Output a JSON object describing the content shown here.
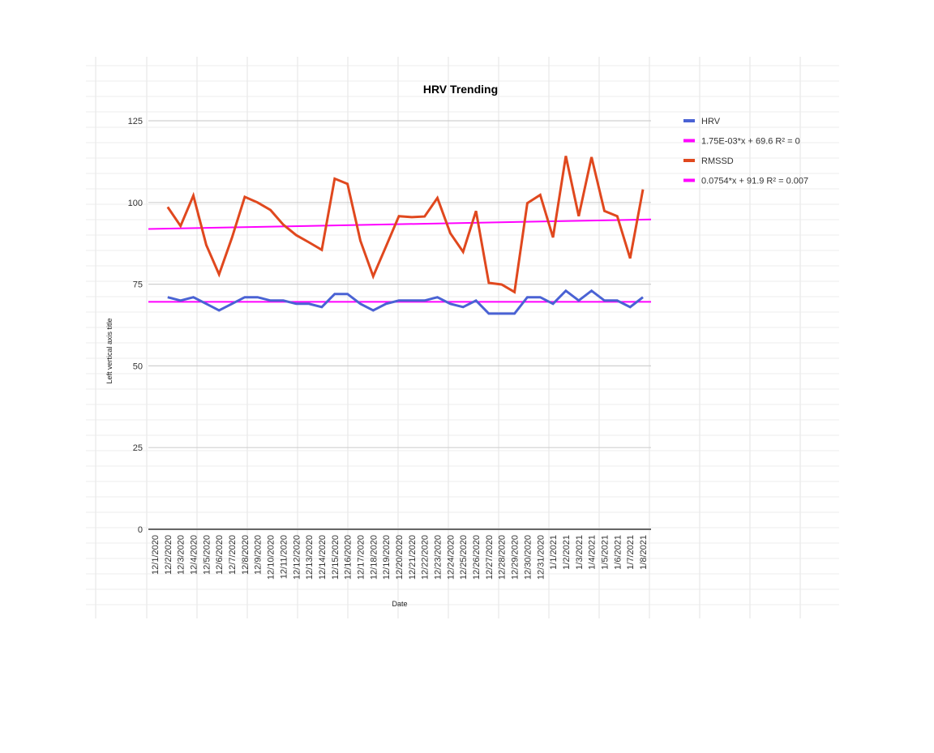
{
  "chart_data": {
    "type": "line",
    "title": "HRV Trending",
    "xlabel": "Date",
    "ylabel": "Left vertical axis title",
    "ylim": [
      0,
      125
    ],
    "yticks": [
      0,
      25,
      50,
      75,
      100,
      125
    ],
    "grid": true,
    "legend_position": "right",
    "categories": [
      "12/1/2020",
      "12/2/2020",
      "12/3/2020",
      "12/4/2020",
      "12/5/2020",
      "12/6/2020",
      "12/7/2020",
      "12/8/2020",
      "12/9/2020",
      "12/10/2020",
      "12/11/2020",
      "12/12/2020",
      "12/13/2020",
      "12/14/2020",
      "12/15/2020",
      "12/16/2020",
      "12/17/2020",
      "12/18/2020",
      "12/19/2020",
      "12/20/2020",
      "12/21/2020",
      "12/22/2020",
      "12/23/2020",
      "12/24/2020",
      "12/25/2020",
      "12/26/2020",
      "12/27/2020",
      "12/28/2020",
      "12/29/2020",
      "12/30/2020",
      "12/31/2020",
      "1/1/2021",
      "1/2/2021",
      "1/3/2021",
      "1/4/2021",
      "1/5/2021",
      "1/6/2021",
      "1/7/2021",
      "1/8/2021"
    ],
    "series": [
      {
        "name": "HRV",
        "color": "#4a62d4",
        "values": [
          null,
          71,
          70,
          71,
          69,
          67,
          69,
          71,
          71,
          70,
          70,
          69,
          69,
          68,
          72,
          72,
          69,
          67,
          69,
          70,
          70,
          70,
          71,
          69,
          68,
          70,
          66,
          66,
          66,
          71,
          71,
          69,
          73,
          70,
          73,
          70,
          70,
          68,
          71
        ]
      },
      {
        "name": "RMSSD",
        "color": "#e0481e",
        "values": [
          null,
          98.6,
          92.8,
          102.1,
          87.0,
          78.0,
          89.2,
          101.7,
          100.0,
          97.7,
          93.2,
          90.0,
          87.8,
          85.5,
          107.3,
          105.7,
          88.3,
          77.4,
          86.6,
          95.8,
          95.5,
          95.7,
          101.4,
          90.6,
          84.9,
          97.4,
          75.4,
          74.9,
          72.6,
          99.8,
          102.3,
          89.3,
          114.2,
          95.8,
          113.9,
          97.4,
          95.8,
          82.9,
          104.0
        ]
      }
    ],
    "trendlines": [
      {
        "name": "1.75E-03*x + 69.6 R² = 0",
        "color": "#ff00ff",
        "start": 69.6,
        "end": 69.6
      },
      {
        "name": "0.0754*x + 91.9 R² = 0.007",
        "color": "#ff00ff",
        "start": 91.9,
        "end": 94.8
      }
    ],
    "legend": [
      {
        "label": "HRV",
        "color": "#4a62d4"
      },
      {
        "label": "1.75E-03*x + 69.6 R² = 0",
        "color": "#ff00ff"
      },
      {
        "label": "RMSSD",
        "color": "#e0481e"
      },
      {
        "label": "0.0754*x + 91.9 R² = 0.007",
        "color": "#ff00ff"
      }
    ]
  }
}
